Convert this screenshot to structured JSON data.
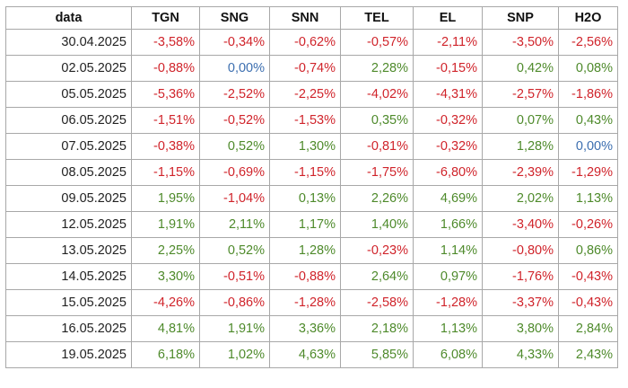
{
  "table": {
    "headers": [
      "data",
      "TGN",
      "SNG",
      "SNN",
      "TEL",
      "EL",
      "SNP",
      "H2O"
    ],
    "rows": [
      [
        "30.04.2025",
        "-3,58%",
        "-0,34%",
        "-0,62%",
        "-0,57%",
        "-2,11%",
        "-3,50%",
        "-2,56%"
      ],
      [
        "02.05.2025",
        "-0,88%",
        "0,00%",
        "-0,74%",
        "2,28%",
        "-0,15%",
        "0,42%",
        "0,08%"
      ],
      [
        "05.05.2025",
        "-5,36%",
        "-2,52%",
        "-2,25%",
        "-4,02%",
        "-4,31%",
        "-2,57%",
        "-1,86%"
      ],
      [
        "06.05.2025",
        "-1,51%",
        "-0,52%",
        "-1,53%",
        "0,35%",
        "-0,32%",
        "0,07%",
        "0,43%"
      ],
      [
        "07.05.2025",
        "-0,38%",
        "0,52%",
        "1,30%",
        "-0,81%",
        "-0,32%",
        "1,28%",
        "0,00%"
      ],
      [
        "08.05.2025",
        "-1,15%",
        "-0,69%",
        "-1,15%",
        "-1,75%",
        "-6,80%",
        "-2,39%",
        "-1,29%"
      ],
      [
        "09.05.2025",
        "1,95%",
        "-1,04%",
        "0,13%",
        "2,26%",
        "4,69%",
        "2,02%",
        "1,13%"
      ],
      [
        "12.05.2025",
        "1,91%",
        "2,11%",
        "1,17%",
        "1,40%",
        "1,66%",
        "-3,40%",
        "-0,26%"
      ],
      [
        "13.05.2025",
        "2,25%",
        "0,52%",
        "1,28%",
        "-0,23%",
        "1,14%",
        "-0,80%",
        "0,86%"
      ],
      [
        "14.05.2025",
        "3,30%",
        "-0,51%",
        "-0,88%",
        "2,64%",
        "0,97%",
        "-1,76%",
        "-0,43%"
      ],
      [
        "15.05.2025",
        "-4,26%",
        "-0,86%",
        "-1,28%",
        "-2,58%",
        "-1,28%",
        "-3,37%",
        "-0,43%"
      ],
      [
        "16.05.2025",
        "4,81%",
        "1,91%",
        "3,36%",
        "2,18%",
        "1,13%",
        "3,80%",
        "2,84%"
      ],
      [
        "19.05.2025",
        "6,18%",
        "1,02%",
        "4,63%",
        "5,85%",
        "6,08%",
        "4,33%",
        "2,43%"
      ]
    ]
  },
  "colors": {
    "negative": "#d0242b",
    "positive": "#4e8a2b",
    "zero": "#3d6fb0",
    "border": "#a8a8a8"
  }
}
